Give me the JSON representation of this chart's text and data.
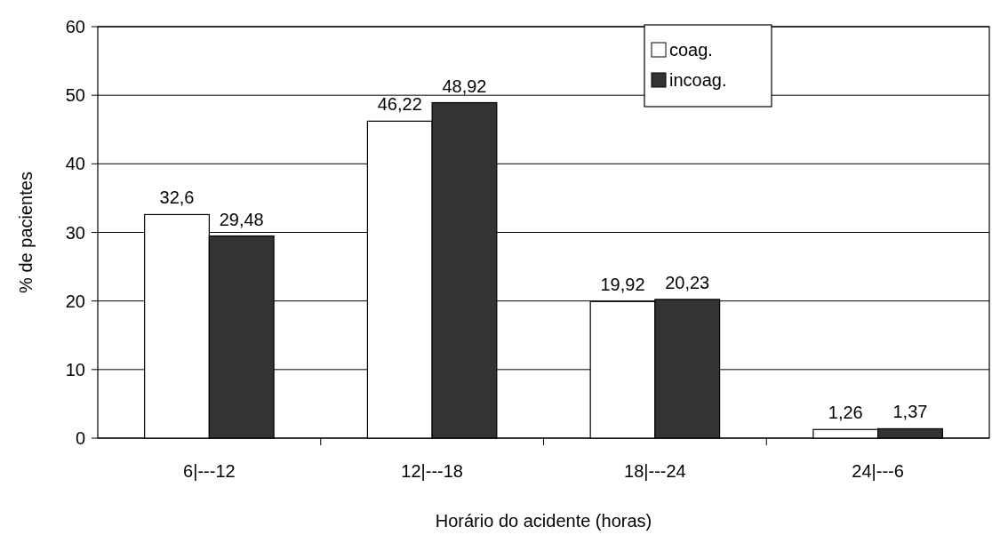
{
  "chart_data": {
    "type": "bar",
    "xlabel": "Horário do acidente (horas)",
    "ylabel": "% de pacientes",
    "categories": [
      "6|---12",
      "12|---18",
      "18|---24",
      "24|---6"
    ],
    "series": [
      {
        "name": "coag.",
        "color": "#ffffff",
        "values": [
          32.6,
          46.22,
          19.92,
          1.26
        ],
        "value_labels": [
          "32,6",
          "46,22",
          "19,92",
          "1,26"
        ]
      },
      {
        "name": "incoag.",
        "color": "#333333",
        "values": [
          29.48,
          48.92,
          20.23,
          1.37
        ],
        "value_labels": [
          "29,48",
          "48,92",
          "20,23",
          "1,37"
        ]
      }
    ],
    "ylim": [
      0,
      60
    ],
    "yticks": [
      0,
      10,
      20,
      30,
      40,
      50,
      60
    ],
    "grid": "y",
    "legend": "top right"
  }
}
